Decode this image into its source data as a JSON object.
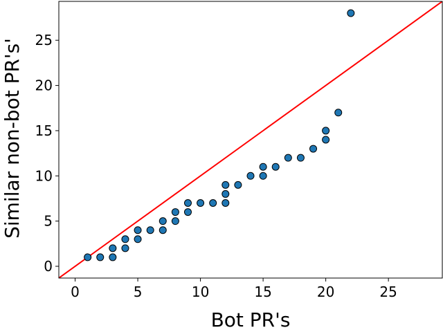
{
  "chart_data": {
    "type": "scatter",
    "title": "",
    "xlabel": "Bot PR's",
    "ylabel": "Similar non-bot PR's'",
    "xlim": [
      -1.3,
      29.3
    ],
    "ylim": [
      -1.3,
      29.3
    ],
    "xticks": [
      0,
      5,
      10,
      15,
      20,
      25
    ],
    "yticks": [
      0,
      5,
      10,
      15,
      20,
      25
    ],
    "grid": false,
    "legend": "none",
    "reference_line": {
      "type": "y=x",
      "color": "#ff0000"
    },
    "marker_color": "#1f77b4",
    "marker_edge_color": "#000000",
    "points": [
      [
        1,
        1
      ],
      [
        2,
        1
      ],
      [
        3,
        1
      ],
      [
        3,
        2
      ],
      [
        4,
        2
      ],
      [
        4,
        3
      ],
      [
        5,
        3
      ],
      [
        5,
        4
      ],
      [
        6,
        4
      ],
      [
        7,
        4
      ],
      [
        7,
        5
      ],
      [
        8,
        5
      ],
      [
        8,
        6
      ],
      [
        9,
        6
      ],
      [
        9,
        7
      ],
      [
        10,
        7
      ],
      [
        11,
        7
      ],
      [
        12,
        7
      ],
      [
        12,
        8
      ],
      [
        12,
        9
      ],
      [
        13,
        9
      ],
      [
        14,
        10
      ],
      [
        15,
        10
      ],
      [
        15,
        11
      ],
      [
        16,
        11
      ],
      [
        17,
        12
      ],
      [
        18,
        12
      ],
      [
        19,
        13
      ],
      [
        20,
        14
      ],
      [
        20,
        15
      ],
      [
        21,
        17
      ],
      [
        22,
        28
      ]
    ]
  }
}
